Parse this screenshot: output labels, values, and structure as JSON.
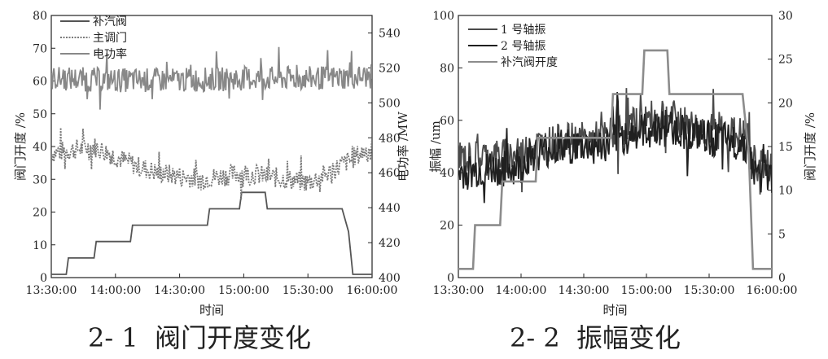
{
  "captions": {
    "left": "2- 1  阀门开度变化",
    "right": "2- 2  振幅变化"
  },
  "chart_data": [
    {
      "type": "line",
      "title": "",
      "xlabel": "时间",
      "ylabel": "阀门开度 /%",
      "y2label": "电功率 /MW",
      "xlim": [
        "13:30:00",
        "16:00:00"
      ],
      "ylim": [
        0,
        80
      ],
      "y2lim": [
        400,
        550
      ],
      "x_ticks": [
        "13:30:00",
        "14:00:00",
        "14:30:00",
        "15:00:00",
        "15:30:00",
        "16:00:00"
      ],
      "y_ticks": [
        "0",
        "10",
        "20",
        "30",
        "40",
        "50",
        "60",
        "70",
        "80"
      ],
      "y2_ticks": [
        "400",
        "420",
        "440",
        "460",
        "480",
        "500",
        "520",
        "540"
      ],
      "grid": false,
      "legend_position": "top-left",
      "series": [
        {
          "name": "补汽阀",
          "axis": "left",
          "color": "#555555",
          "x": [
            "13:30:00",
            "13:37:00",
            "13:38:00",
            "13:50:00",
            "13:51:00",
            "14:07:00",
            "14:08:00",
            "14:43:00",
            "14:44:00",
            "14:58:00",
            "14:59:00",
            "15:10:00",
            "15:11:00",
            "15:45:00",
            "15:46:00",
            "15:49:00",
            "15:51:00",
            "16:00:00"
          ],
          "values": [
            1,
            1,
            6,
            6,
            11,
            11,
            16,
            16,
            21,
            21,
            26,
            26,
            21,
            21,
            21,
            14,
            1,
            1
          ]
        },
        {
          "name": "主调门",
          "axis": "left",
          "color": "#7a7a7a",
          "x": [
            "13:30:00",
            "13:40:00",
            "13:50:00",
            "14:00:00",
            "14:10:00",
            "14:20:00",
            "14:30:00",
            "14:40:00",
            "14:50:00",
            "15:00:00",
            "15:10:00",
            "15:20:00",
            "15:30:00",
            "15:40:00",
            "15:50:00",
            "16:00:00"
          ],
          "values": [
            38,
            39,
            40,
            37,
            34,
            32,
            31,
            30,
            31,
            32,
            31,
            30,
            29,
            32,
            36,
            40
          ]
        },
        {
          "name": "电功率",
          "axis": "right",
          "color": "#888888",
          "x": [
            "13:30:00",
            "14:00:00",
            "14:30:00",
            "15:00:00",
            "15:30:00",
            "16:00:00"
          ],
          "values": [
            514,
            513,
            513,
            514,
            514,
            515
          ]
        }
      ]
    },
    {
      "type": "line",
      "title": "",
      "xlabel": "时间",
      "ylabel": "振幅 /um",
      "y2label": "阀门开度 /%",
      "xlim": [
        "13:30:00",
        "16:00:00"
      ],
      "ylim": [
        0,
        100
      ],
      "y2lim": [
        0,
        30
      ],
      "x_ticks": [
        "13:30:00",
        "14:00:00",
        "14:30:00",
        "15:00:00",
        "15:30:00",
        "16:00:00"
      ],
      "y_ticks": [
        "0",
        "20",
        "40",
        "60",
        "80",
        "100"
      ],
      "y2_ticks": [
        "0",
        "5",
        "10",
        "15",
        "20",
        "25",
        "30"
      ],
      "grid": false,
      "legend_position": "top-left",
      "series": [
        {
          "name": "1 号轴振",
          "axis": "left",
          "color": "#4a4a4a",
          "x": [
            "13:30:00",
            "13:45:00",
            "14:00:00",
            "14:04:00",
            "14:20:00",
            "14:40:00",
            "14:45:00",
            "15:00:00",
            "15:10:00",
            "15:20:00",
            "15:30:00",
            "15:40:00",
            "15:48:00",
            "15:51:00",
            "16:00:00"
          ],
          "values": [
            45,
            46,
            47,
            50,
            52,
            53,
            56,
            60,
            62,
            58,
            56,
            55,
            54,
            44,
            42
          ]
        },
        {
          "name": "2 号轴振",
          "axis": "left",
          "color": "#202020",
          "x": [
            "13:30:00",
            "13:45:00",
            "14:00:00",
            "14:04:00",
            "14:20:00",
            "14:40:00",
            "14:45:00",
            "15:00:00",
            "15:10:00",
            "15:20:00",
            "15:30:00",
            "15:40:00",
            "15:48:00",
            "15:51:00",
            "16:00:00"
          ],
          "values": [
            40,
            41,
            42,
            47,
            50,
            50,
            53,
            56,
            58,
            55,
            53,
            52,
            51,
            40,
            38
          ]
        },
        {
          "name": "补汽阀开度",
          "axis": "right",
          "color": "#8c8c8c",
          "x": [
            "13:30:00",
            "13:37:00",
            "13:38:00",
            "13:50:00",
            "13:51:00",
            "14:07:00",
            "14:08:00",
            "14:43:00",
            "14:44:00",
            "14:58:00",
            "14:59:00",
            "15:10:00",
            "15:11:00",
            "15:45:00",
            "15:46:00",
            "15:49:00",
            "15:51:00",
            "16:00:00"
          ],
          "values": [
            1,
            1,
            6,
            6,
            11,
            11,
            16,
            16,
            21,
            21,
            26,
            26,
            21,
            21,
            21,
            14,
            1,
            1
          ]
        }
      ]
    }
  ]
}
